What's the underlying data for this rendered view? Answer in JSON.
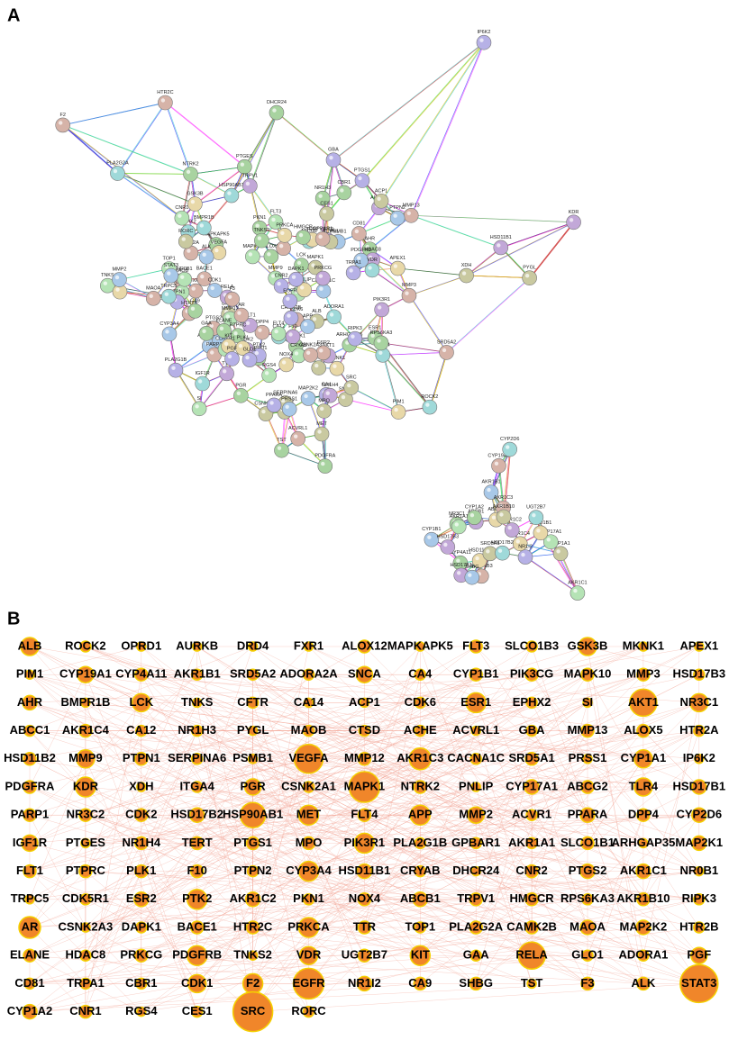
{
  "panel_a": {
    "label": "A",
    "nodes": [
      "ALB",
      "ROCK2",
      "OPRD1",
      "AURKB",
      "DRD4",
      "FXR1",
      "ALOX12",
      "MAPKAPK5",
      "FLT3",
      "SLCO1B3",
      "GSK3B",
      "MKNK1",
      "APEX1",
      "PIM1",
      "CYP19A1",
      "CYP4A11",
      "AKR1B1",
      "SRD5A2",
      "ADORA2A",
      "SNCA",
      "CA4",
      "CYP1B1",
      "PIK3CG",
      "MAPK10",
      "MMP3",
      "HSD17B3",
      "AHR",
      "BMPR1B",
      "LCK",
      "TNKS",
      "CFTR",
      "CA14",
      "ACP1",
      "CDK6",
      "ESR1",
      "EPHX2",
      "SI",
      "AKT1",
      "NR3C1",
      "ABCC1",
      "AKR1C4",
      "CA12",
      "NR1H3",
      "PYGL",
      "MAOB",
      "CTSD",
      "ACHE",
      "ACVRL1",
      "GBA",
      "MMP13",
      "ALOX5",
      "HTR2A",
      "HSD11B2",
      "MMP9",
      "PTPN1",
      "SERPINA6",
      "PSMB1",
      "VEGFA",
      "MMP12",
      "AKR1C3",
      "CACNA1C",
      "SRD5A1",
      "PRSS1",
      "CYP1A1",
      "IP6K2",
      "PDGFRA",
      "KDR",
      "XDH",
      "ITGA4",
      "PGR",
      "CSNK2A1",
      "MAPK1",
      "NTRK2",
      "PNLIP",
      "CYP17A1",
      "ABCG2",
      "TLR4",
      "HSD17B1",
      "PARP1",
      "NR3C2",
      "CDK2",
      "HSD17B2",
      "HSP90AB1",
      "MET",
      "FLT4",
      "APP",
      "MMP2",
      "ACVR1",
      "PPARA",
      "DPP4",
      "CYP2D6",
      "IGF1R",
      "PTGES",
      "NR1H4",
      "TERT",
      "PTGS1",
      "MPO",
      "PIK3R1",
      "PLA2G1B",
      "GPBAR1",
      "AKR1A1",
      "SLCO1B1",
      "ARHGAP35",
      "MAP2K1",
      "FLT1",
      "PTPRC",
      "PLK1",
      "F10",
      "PTPN2",
      "CYP3A4",
      "HSD11B1",
      "CRYAB",
      "DHCR24",
      "CNR2",
      "PTGS2",
      "AKR1C1",
      "NR0B1",
      "TRPC5",
      "CDK5R1",
      "ESR2",
      "PTK2",
      "AKR1C2",
      "PKN1",
      "NOX4",
      "ABCB1",
      "TRPV1",
      "HMGCR",
      "RPS6KA3",
      "AKR1B10",
      "RIPK3",
      "AR",
      "CSNK2A3",
      "DAPK1",
      "BACE1",
      "HTR2C",
      "PRKCA",
      "TTR",
      "TOP1",
      "PLA2G2A",
      "CAMK2B",
      "MAOA",
      "MAP2K2",
      "HTR2B",
      "ELANE",
      "HDAC8",
      "PRKCG",
      "PDGFRB",
      "TNKS2",
      "VDR",
      "UGT2B7",
      "KIT",
      "GAA",
      "RELA",
      "GLO1",
      "ADORA1",
      "PGF",
      "CD81",
      "TRPA1",
      "CBR1",
      "CDK1",
      "F2",
      "EGFR",
      "NR1I2",
      "CA9",
      "SHBG",
      "TST",
      "F3",
      "ALK",
      "STAT3",
      "CYP1A2",
      "CNR1",
      "RGS4",
      "CES1",
      "SRC",
      "RORC"
    ]
  },
  "panel_b": {
    "label": "B",
    "nodes": [
      "ALB",
      "ROCK2",
      "OPRD1",
      "AURKB",
      "DRD4",
      "FXR1",
      "ALOX12",
      "MAPKAPK5",
      "FLT3",
      "SLCO1B3",
      "GSK3B",
      "MKNK1",
      "APEX1",
      "PIM1",
      "CYP19A1",
      "CYP4A11",
      "AKR1B1",
      "SRD5A2",
      "ADORA2A",
      "SNCA",
      "CA4",
      "CYP1B1",
      "PIK3CG",
      "MAPK10",
      "MMP3",
      "HSD17B3",
      "AHR",
      "BMPR1B",
      "LCK",
      "TNKS",
      "CFTR",
      "CA14",
      "ACP1",
      "CDK6",
      "ESR1",
      "EPHX2",
      "SI",
      "AKT1",
      "NR3C1",
      "ABCC1",
      "AKR1C4",
      "CA12",
      "NR1H3",
      "PYGL",
      "MAOB",
      "CTSD",
      "ACHE",
      "ACVRL1",
      "GBA",
      "MMP13",
      "ALOX5",
      "HTR2A",
      "HSD11B2",
      "MMP9",
      "PTPN1",
      "SERPINA6",
      "PSMB1",
      "VEGFA",
      "MMP12",
      "AKR1C3",
      "CACNA1C",
      "SRD5A1",
      "PRSS1",
      "CYP1A1",
      "IP6K2",
      "PDGFRA",
      "KDR",
      "XDH",
      "ITGA4",
      "PGR",
      "CSNK2A1",
      "MAPK1",
      "NTRK2",
      "PNLIP",
      "CYP17A1",
      "ABCG2",
      "TLR4",
      "HSD17B1",
      "PARP1",
      "NR3C2",
      "CDK2",
      "HSD17B2",
      "HSP90AB1",
      "MET",
      "FLT4",
      "APP",
      "MMP2",
      "ACVR1",
      "PPARA",
      "DPP4",
      "CYP2D6",
      "IGF1R",
      "PTGES",
      "NR1H4",
      "TERT",
      "PTGS1",
      "MPO",
      "PIK3R1",
      "PLA2G1B",
      "GPBAR1",
      "AKR1A1",
      "SLCO1B1",
      "ARHGAP35",
      "MAP2K1",
      "FLT1",
      "PTPRC",
      "PLK1",
      "F10",
      "PTPN2",
      "CYP3A4",
      "HSD11B1",
      "CRYAB",
      "DHCR24",
      "CNR2",
      "PTGS2",
      "AKR1C1",
      "NR0B1",
      "TRPC5",
      "CDK5R1",
      "ESR2",
      "PTK2",
      "AKR1C2",
      "PKN1",
      "NOX4",
      "ABCB1",
      "TRPV1",
      "HMGCR",
      "RPS6KA3",
      "AKR1B10",
      "RIPK3",
      "AR",
      "CSNK2A3",
      "DAPK1",
      "BACE1",
      "HTR2C",
      "PRKCA",
      "TTR",
      "TOP1",
      "PLA2G2A",
      "CAMK2B",
      "MAOA",
      "MAP2K2",
      "HTR2B",
      "ELANE",
      "HDAC8",
      "PRKCG",
      "PDGFRB",
      "TNKS2",
      "VDR",
      "UGT2B7",
      "KIT",
      "GAA",
      "RELA",
      "GLO1",
      "ADORA1",
      "PGF",
      "CD81",
      "TRPA1",
      "CBR1",
      "CDK1",
      "F2",
      "EGFR",
      "NR1I2",
      "CA9",
      "SHBG",
      "TST",
      "F3",
      "ALK",
      "STAT3",
      "CYP1A2",
      "CNR1",
      "RGS4",
      "CES1",
      "SRC",
      "RORC"
    ],
    "sizes": [
      10,
      6,
      5,
      5,
      5,
      5,
      7,
      5,
      7,
      6,
      10,
      5,
      5,
      5,
      9,
      7,
      6,
      6,
      6,
      9,
      6,
      7,
      7,
      7,
      7,
      6,
      8,
      5,
      10,
      5,
      6,
      5,
      5,
      6,
      11,
      6,
      5,
      15,
      10,
      6,
      7,
      6,
      6,
      5,
      6,
      6,
      6,
      5,
      6,
      7,
      7,
      6,
      7,
      10,
      7,
      6,
      5,
      16,
      7,
      12,
      6,
      7,
      5,
      10,
      5,
      7,
      11,
      5,
      6,
      9,
      6,
      17,
      7,
      5,
      8,
      7,
      10,
      8,
      7,
      7,
      7,
      8,
      14,
      11,
      7,
      11,
      9,
      6,
      8,
      7,
      8,
      9,
      5,
      7,
      7,
      7,
      7,
      11,
      6,
      6,
      6,
      7,
      5,
      8,
      7,
      7,
      7,
      7,
      6,
      11,
      8,
      6,
      5,
      7,
      8,
      8,
      5,
      5,
      6,
      8,
      11,
      8,
      6,
      7,
      8,
      7,
      7,
      6,
      7,
      6,
      12,
      5,
      6,
      7,
      7,
      11,
      7,
      6,
      7,
      7,
      8,
      8,
      6,
      7,
      6,
      7,
      11,
      5,
      10,
      7,
      11,
      6,
      15,
      6,
      6,
      9,
      6,
      6,
      6,
      10,
      11,
      17,
      8,
      7,
      7,
      5,
      7,
      7,
      21,
      8,
      7,
      5,
      6,
      22,
      6
    ]
  }
}
